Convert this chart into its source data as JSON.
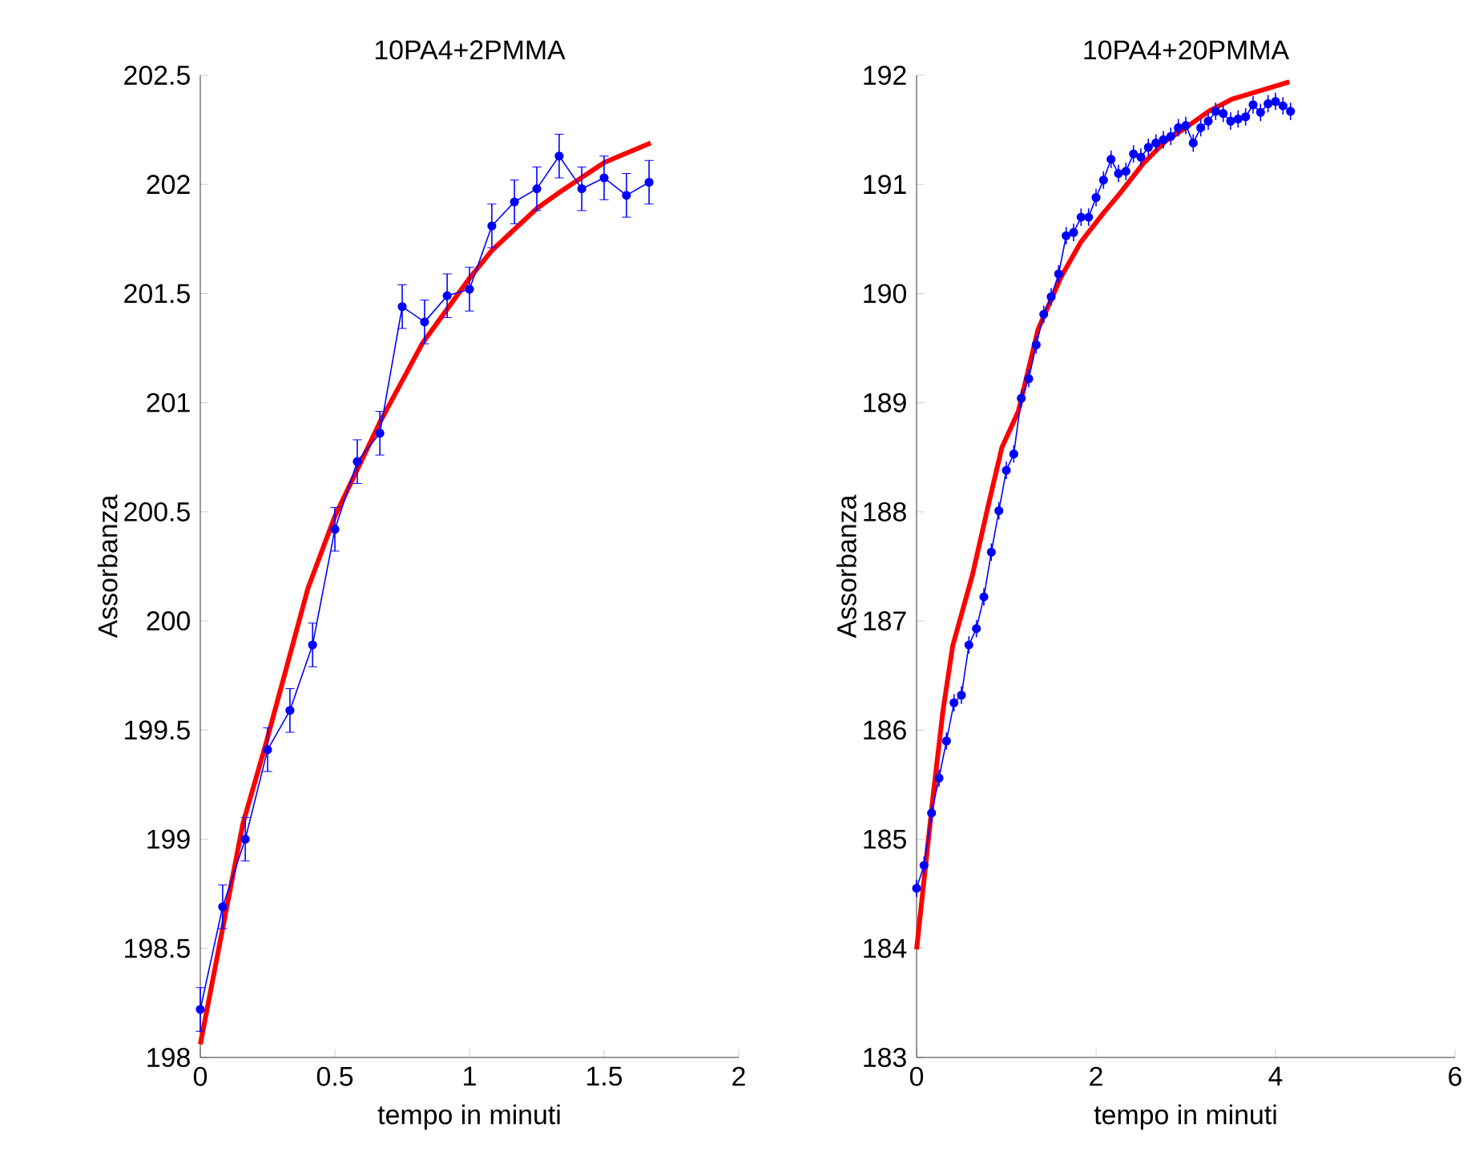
{
  "chart_data": [
    {
      "type": "line",
      "title": "10PA4+2PMMA",
      "xlabel": "tempo in minuti",
      "ylabel": "Assorbanza",
      "xlim": [
        0,
        2
      ],
      "ylim": [
        198,
        202.5
      ],
      "xticks": [
        0,
        0.5,
        1,
        1.5,
        2
      ],
      "yticks": [
        198,
        198.5,
        199,
        199.5,
        200,
        200.5,
        201,
        201.5,
        202,
        202.5
      ],
      "series": [
        {
          "color": "#0000ff",
          "marker": "circle",
          "x": [
            0,
            0.083,
            0.167,
            0.25,
            0.333,
            0.417,
            0.5,
            0.583,
            0.667,
            0.75,
            0.833,
            0.917,
            1,
            1.083,
            1.167,
            1.25,
            1.333,
            1.417,
            1.5,
            1.583,
            1.667
          ],
          "values": [
            198.22,
            198.69,
            199.0,
            199.41,
            199.59,
            199.89,
            200.42,
            200.73,
            200.86,
            201.44,
            201.37,
            201.49,
            201.52,
            201.81,
            201.92,
            201.98,
            202.13,
            201.98,
            202.03,
            201.95,
            202.01
          ],
          "errors": [
            0.1,
            0.1,
            0.1,
            0.1,
            0.1,
            0.1,
            0.1,
            0.1,
            0.1,
            0.1,
            0.1,
            0.1,
            0.1,
            0.1,
            0.1,
            0.1,
            0.1,
            0.1,
            0.1,
            0.1,
            0.1
          ]
        },
        {
          "color": "#ff0000",
          "marker": "none",
          "x": [
            0,
            0.158,
            0.242,
            0.4,
            0.5,
            0.667,
            0.824,
            1.0,
            1.085,
            1.25,
            1.33,
            1.5,
            1.673
          ],
          "values": [
            198.06,
            199.07,
            199.43,
            200.15,
            200.48,
            200.91,
            201.27,
            201.57,
            201.7,
            201.89,
            201.96,
            202.1,
            202.19
          ]
        }
      ]
    },
    {
      "type": "line",
      "title": "10PA4+20PMMA",
      "xlabel": "tempo in minuti",
      "ylabel": "Assorbanza",
      "xlim": [
        0,
        6
      ],
      "ylim": [
        183,
        192
      ],
      "xticks": [
        0,
        2,
        4,
        6
      ],
      "yticks": [
        183,
        184,
        185,
        186,
        187,
        188,
        189,
        190,
        191,
        192
      ],
      "series": [
        {
          "color": "#0000ff",
          "marker": "circle",
          "x": [
            0,
            0.083,
            0.167,
            0.25,
            0.333,
            0.417,
            0.5,
            0.583,
            0.667,
            0.75,
            0.833,
            0.917,
            1,
            1.083,
            1.167,
            1.25,
            1.333,
            1.417,
            1.5,
            1.583,
            1.667,
            1.75,
            1.833,
            1.917,
            2,
            2.083,
            2.167,
            2.25,
            2.333,
            2.417,
            2.5,
            2.583,
            2.667,
            2.75,
            2.833,
            2.917,
            3,
            3.083,
            3.167,
            3.25,
            3.333,
            3.417,
            3.5,
            3.583,
            3.667,
            3.75,
            3.833,
            3.917,
            4,
            4.083,
            4.167
          ],
          "values": [
            184.55,
            184.76,
            185.24,
            185.56,
            185.9,
            186.25,
            186.32,
            186.78,
            186.93,
            187.22,
            187.63,
            188.01,
            188.38,
            188.53,
            189.04,
            189.22,
            189.53,
            189.81,
            189.97,
            190.18,
            190.53,
            190.56,
            190.7,
            190.7,
            190.88,
            191.04,
            191.23,
            191.1,
            191.12,
            191.28,
            191.25,
            191.34,
            191.38,
            191.41,
            191.44,
            191.52,
            191.54,
            191.38,
            191.52,
            191.58,
            191.67,
            191.65,
            191.58,
            191.6,
            191.62,
            191.73,
            191.66,
            191.74,
            191.76,
            191.72,
            191.67
          ],
          "errors": [
            0.08,
            0.08,
            0.08,
            0.08,
            0.08,
            0.08,
            0.08,
            0.08,
            0.08,
            0.08,
            0.08,
            0.08,
            0.08,
            0.08,
            0.08,
            0.08,
            0.08,
            0.08,
            0.08,
            0.08,
            0.08,
            0.08,
            0.08,
            0.08,
            0.08,
            0.08,
            0.08,
            0.08,
            0.08,
            0.08,
            0.08,
            0.08,
            0.08,
            0.08,
            0.08,
            0.08,
            0.08,
            0.08,
            0.08,
            0.08,
            0.08,
            0.08,
            0.08,
            0.08,
            0.08,
            0.08,
            0.08,
            0.08,
            0.08,
            0.08,
            0.08
          ]
        },
        {
          "color": "#ff0000",
          "marker": "none",
          "x": [
            0,
            0.073,
            0.183,
            0.293,
            0.402,
            0.622,
            0.805,
            0.951,
            1.134,
            1.353,
            1.609,
            1.829,
            2.085,
            2.268,
            2.524,
            2.78,
            2.999,
            3.255,
            3.511,
            3.914,
            4.155
          ],
          "values": [
            183.99,
            184.55,
            185.39,
            186.17,
            186.77,
            187.42,
            188.08,
            188.59,
            188.92,
            189.67,
            190.15,
            190.47,
            190.74,
            190.92,
            191.19,
            191.4,
            191.52,
            191.67,
            191.78,
            191.88,
            191.94
          ]
        }
      ]
    }
  ]
}
